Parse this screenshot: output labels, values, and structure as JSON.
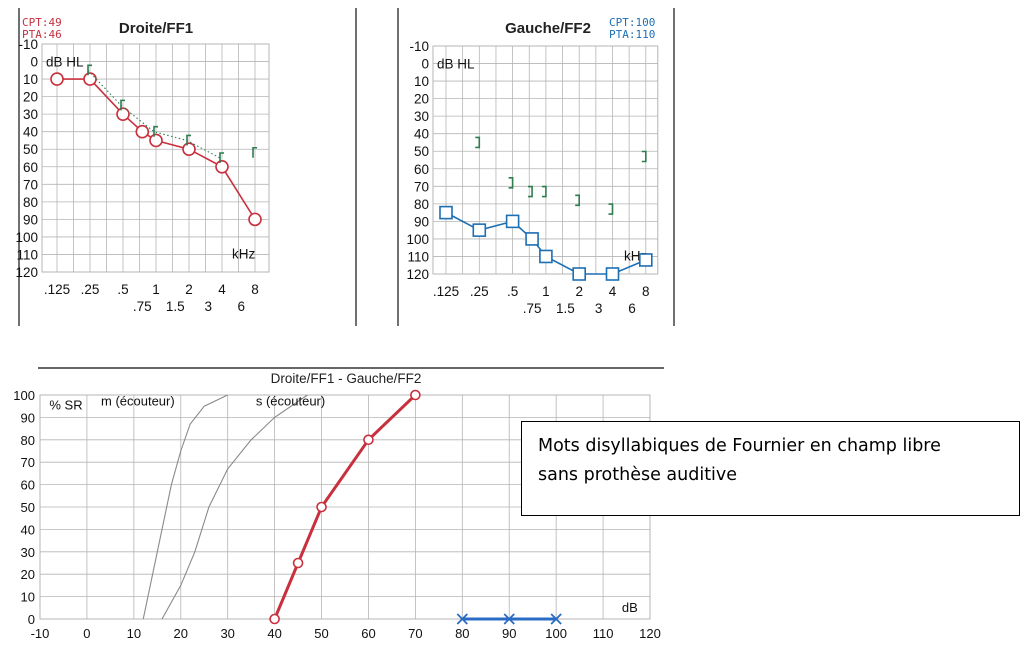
{
  "colors": {
    "right_ear": "#c9303e",
    "left_ear": "#1d6fb4",
    "bone": "#2e7d4f",
    "grid": "#b5b5b5",
    "curve_gray": "#8a8a8a",
    "speech_red": "#c9303e",
    "speech_blue": "#2a6cc4"
  },
  "chart_data": [
    {
      "type": "line",
      "title": "Droite/FF1",
      "badge": [
        "CPT:49",
        "PTA:46"
      ],
      "ylabel": "dB HL",
      "xlabel": "kHz",
      "ylim": [
        -10,
        120
      ],
      "y_reversed": true,
      "yticks": [
        "-10",
        "0",
        "10",
        "20",
        "30",
        "40",
        "50",
        "60",
        "70",
        "80",
        "90",
        "100",
        "110",
        "120"
      ],
      "xticks_top": [
        ".125",
        ".25",
        ".5",
        "1",
        "2",
        "4",
        "8"
      ],
      "xticks_bottom": [
        ".75",
        "1.5",
        "3",
        "6"
      ],
      "series": [
        {
          "kind": "air",
          "marker": "circle",
          "x": [
            0.125,
            0.25,
            0.5,
            0.75,
            1,
            2,
            4,
            8
          ],
          "y": [
            10,
            10,
            30,
            40,
            45,
            50,
            60,
            90
          ]
        },
        {
          "kind": "bone",
          "marker": "bracket",
          "x": [
            0.25,
            0.5,
            1,
            2,
            4,
            8
          ],
          "y": [
            5,
            25,
            40,
            45,
            55,
            52
          ]
        }
      ]
    },
    {
      "type": "line",
      "title": "Gauche/FF2",
      "badge": [
        "CPT:100",
        "PTA:110"
      ],
      "ylabel": "dB HL",
      "xlabel": "kHz",
      "ylim": [
        -10,
        120
      ],
      "y_reversed": true,
      "yticks": [
        "-10",
        "0",
        "10",
        "20",
        "30",
        "40",
        "50",
        "60",
        "70",
        "80",
        "90",
        "100",
        "110",
        "120"
      ],
      "xticks_top": [
        ".125",
        ".25",
        ".5",
        "1",
        "2",
        "4",
        "8"
      ],
      "xticks_bottom": [
        ".75",
        "1.5",
        "3",
        "6"
      ],
      "series": [
        {
          "kind": "air",
          "marker": "square",
          "x": [
            0.125,
            0.25,
            0.5,
            0.75,
            1,
            2,
            4,
            8
          ],
          "y": [
            85,
            95,
            90,
            100,
            110,
            120,
            120,
            112
          ]
        },
        {
          "kind": "bone",
          "marker": "bracket",
          "x": [
            0.25,
            0.5,
            0.75,
            1,
            2,
            4,
            8
          ],
          "y": [
            45,
            68,
            73,
            73,
            78,
            83,
            53
          ]
        }
      ]
    },
    {
      "type": "line",
      "title": "Droite/FF1 - Gauche/FF2",
      "ylabel": "% SR",
      "xlabel": "dB",
      "xlim": [
        -10,
        120
      ],
      "ylim": [
        0,
        100
      ],
      "xticks": [
        "-10",
        "0",
        "10",
        "20",
        "30",
        "40",
        "50",
        "60",
        "70",
        "80",
        "90",
        "100",
        "110",
        "120"
      ],
      "yticks": [
        "0",
        "10",
        "20",
        "30",
        "40",
        "50",
        "60",
        "70",
        "80",
        "90",
        "100"
      ],
      "reference_curves": [
        {
          "name": "m (écouteur)",
          "x": [
            12,
            14,
            16,
            18,
            20,
            22,
            25,
            30
          ],
          "y": [
            0,
            20,
            40,
            60,
            75,
            87,
            95,
            100
          ]
        },
        {
          "name": "s (écouteur)",
          "x": [
            16,
            20,
            23,
            26,
            30,
            35,
            40,
            47
          ],
          "y": [
            0,
            15,
            30,
            50,
            67,
            80,
            90,
            100
          ]
        }
      ],
      "series": [
        {
          "marker": "circle",
          "color": "red",
          "x": [
            40,
            45,
            50,
            60,
            70
          ],
          "y": [
            0,
            25,
            50,
            80,
            100
          ]
        },
        {
          "marker": "cross",
          "color": "blue",
          "x": [
            80,
            90,
            100
          ],
          "y": [
            0,
            0,
            0
          ]
        }
      ]
    }
  ],
  "note": {
    "line1": "Mots disyllabiques de Fournier en champ libre",
    "line2": "sans prothèse auditive"
  }
}
